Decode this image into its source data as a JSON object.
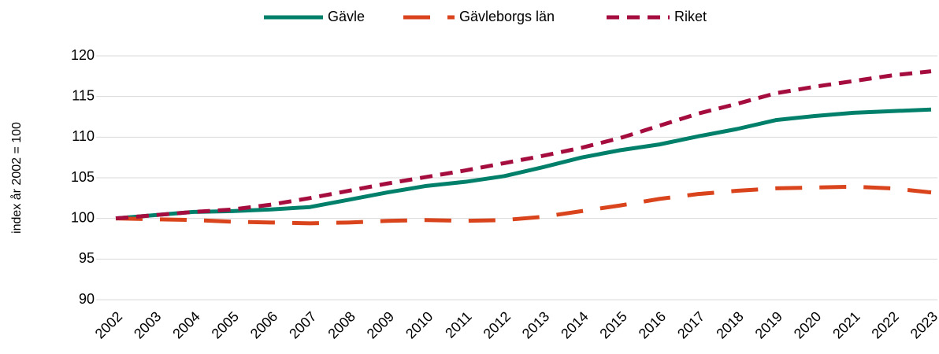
{
  "chart_data": {
    "type": "line",
    "y_label": "index år 2002 = 100",
    "categories": [
      "2002",
      "2003",
      "2004",
      "2005",
      "2006",
      "2007",
      "2008",
      "2009",
      "2010",
      "2011",
      "2012",
      "2013",
      "2014",
      "2015",
      "2016",
      "2017",
      "2018",
      "2019",
      "2020",
      "2021",
      "2022",
      "2023"
    ],
    "series": [
      {
        "name": "Gävle",
        "color": "#00806b",
        "style": "solid",
        "values": [
          100,
          100.4,
          100.8,
          100.9,
          101.1,
          101.4,
          102.3,
          103.2,
          104.0,
          104.5,
          105.2,
          106.3,
          107.5,
          108.4,
          109.1,
          110.1,
          111.0,
          112.1,
          112.6,
          113.0,
          113.2,
          113.4
        ]
      },
      {
        "name": "Gävleborgs län",
        "color": "#d9441c",
        "style": "long-dash",
        "values": [
          100,
          99.9,
          99.8,
          99.6,
          99.5,
          99.4,
          99.5,
          99.7,
          99.8,
          99.7,
          99.8,
          100.2,
          100.9,
          101.6,
          102.4,
          103.0,
          103.4,
          103.7,
          103.8,
          103.9,
          103.7,
          103.2
        ]
      },
      {
        "name": "Riket",
        "color": "#a50d3f",
        "style": "short-dash",
        "values": [
          100,
          100.4,
          100.8,
          101.1,
          101.7,
          102.5,
          103.4,
          104.3,
          105.1,
          105.9,
          106.8,
          107.7,
          108.7,
          109.9,
          111.4,
          112.9,
          114.1,
          115.4,
          116.2,
          116.9,
          117.6,
          118.1
        ]
      }
    ],
    "ylim": [
      90,
      120
    ],
    "yticks": [
      90,
      95,
      100,
      105,
      110,
      115,
      120
    ],
    "grid": true,
    "legend": "top"
  }
}
